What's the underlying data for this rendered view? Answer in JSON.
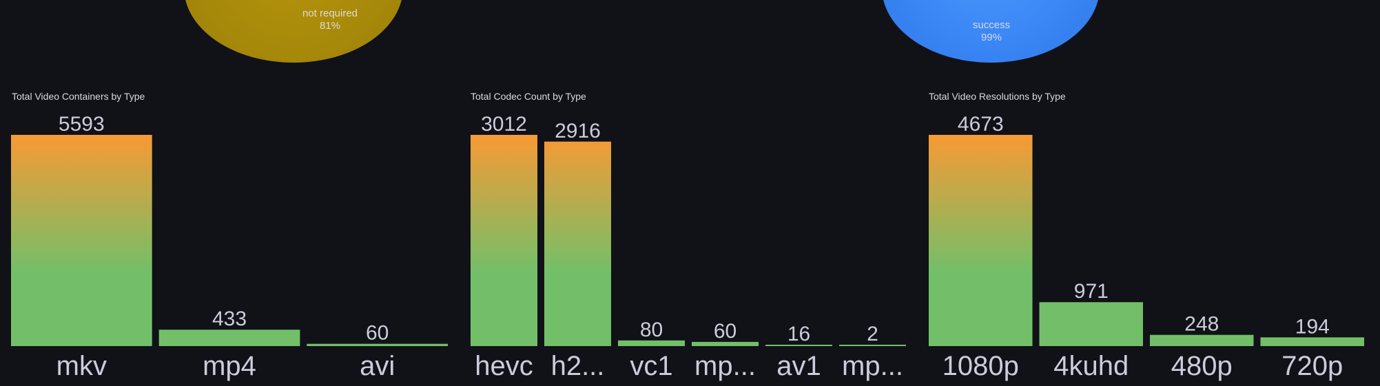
{
  "pies": [
    {
      "label": "not required",
      "value": "81%",
      "color": "#a88a0a"
    },
    {
      "label": "success",
      "value": "99%",
      "color": "#3a86f5"
    }
  ],
  "colors": {
    "gradient_top": "#f79a34",
    "gradient_bottom": "#73bf69",
    "value_text": "#ccccdc"
  },
  "chart_data": [
    {
      "type": "bar",
      "title": "Total Video Containers by Type",
      "categories": [
        "mkv",
        "mp4",
        "avi"
      ],
      "values": [
        5593,
        433,
        60
      ],
      "ylim": [
        0,
        5593
      ],
      "grid": false
    },
    {
      "type": "bar",
      "title": "Total Codec Count by Type",
      "categories": [
        "hevc",
        "h2...",
        "vc1",
        "mp...",
        "av1",
        "mp..."
      ],
      "values": [
        3012,
        2916,
        80,
        60,
        16,
        2
      ],
      "ylim": [
        0,
        3012
      ],
      "grid": false
    },
    {
      "type": "bar",
      "title": "Total Video Resolutions by Type",
      "categories": [
        "1080p",
        "4kuhd",
        "480p",
        "720p"
      ],
      "values": [
        4673,
        971,
        248,
        194
      ],
      "ylim": [
        0,
        4673
      ],
      "grid": false
    }
  ]
}
